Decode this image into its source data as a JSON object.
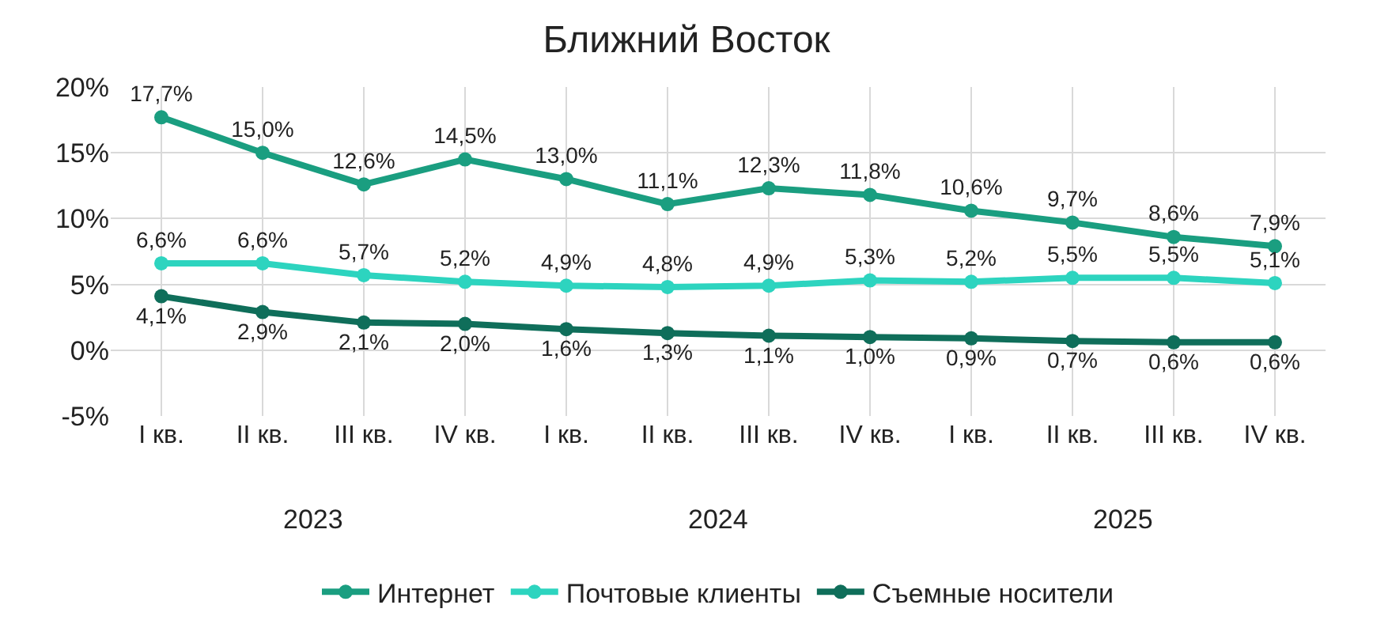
{
  "chart_data": {
    "type": "line",
    "title": "Ближний Восток",
    "categories": [
      "I кв.",
      "II кв.",
      "III кв.",
      "IV кв.",
      "I кв.",
      "II кв.",
      "III кв.",
      "IV кв.",
      "I кв.",
      "II кв.",
      "III кв.",
      "IV кв."
    ],
    "annotations": [
      "2023",
      "2024",
      "2025"
    ],
    "series": [
      {
        "name": "Интернет",
        "color": "#1a9e80",
        "values": [
          17.7,
          15.0,
          12.6,
          14.5,
          13.0,
          11.1,
          12.3,
          11.8,
          10.6,
          9.7,
          8.6,
          7.9
        ],
        "value_labels": [
          "17,7%",
          "15,0%",
          "12,6%",
          "14,5%",
          "13,0%",
          "11,1%",
          "12,3%",
          "11,8%",
          "10,6%",
          "9,7%",
          "8,6%",
          "7,9%"
        ]
      },
      {
        "name": "Почтовые клиенты",
        "color": "#2dd4bf",
        "values": [
          6.6,
          6.6,
          5.7,
          5.2,
          4.9,
          4.8,
          4.9,
          5.3,
          5.2,
          5.5,
          5.5,
          5.1
        ],
        "value_labels": [
          "6,6%",
          "6,6%",
          "5,7%",
          "5,2%",
          "4,9%",
          "4,8%",
          "4,9%",
          "5,3%",
          "5,2%",
          "5,5%",
          "5,5%",
          "5,1%"
        ]
      },
      {
        "name": "Съемные носители",
        "color": "#0f6e5a",
        "values": [
          4.1,
          2.9,
          2.1,
          2.0,
          1.6,
          1.3,
          1.1,
          1.0,
          0.9,
          0.7,
          0.6,
          0.6
        ],
        "value_labels": [
          "4,1%",
          "2,9%",
          "2,1%",
          "2,0%",
          "1,6%",
          "1,3%",
          "1,1%",
          "1,0%",
          "0,9%",
          "0,7%",
          "0,6%",
          "0,6%"
        ]
      }
    ],
    "ylim": [
      -5,
      20
    ],
    "yticks": [
      {
        "value": -5,
        "label": "-5%"
      },
      {
        "value": 0,
        "label": "0%"
      },
      {
        "value": 5,
        "label": "5%"
      },
      {
        "value": 10,
        "label": "10%"
      },
      {
        "value": 15,
        "label": "15%"
      },
      {
        "value": 20,
        "label": "20%"
      }
    ],
    "grid": true,
    "legend": "bottom",
    "marker": "circle",
    "line_style": "solid"
  }
}
